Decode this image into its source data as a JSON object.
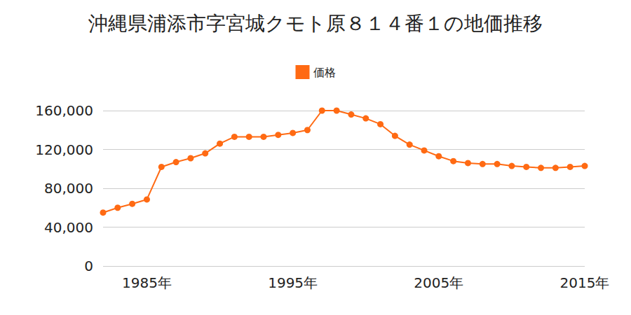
{
  "chart_data": {
    "type": "line",
    "title": "沖縄県浦添市字宮城クモト原８１４番１の地価推移",
    "categories": [
      null,
      null,
      null,
      "1985年",
      null,
      null,
      null,
      null,
      null,
      null,
      null,
      null,
      null,
      "1995年",
      null,
      null,
      null,
      null,
      null,
      null,
      null,
      null,
      null,
      "2005年",
      null,
      null,
      null,
      null,
      null,
      null,
      null,
      null,
      null,
      "2015年"
    ],
    "series": [
      {
        "name": "価格",
        "color": "#ff6a13",
        "marker": "circle",
        "values": [
          55000,
          60000,
          64000,
          68500,
          102000,
          107000,
          111000,
          116000,
          126000,
          133000,
          133000,
          133000,
          135000,
          137000,
          140000,
          160000,
          160000,
          156000,
          152000,
          146000,
          134000,
          125000,
          119000,
          113000,
          108000,
          106000,
          105000,
          105000,
          103000,
          102000,
          101000,
          101000,
          102000,
          103000
        ]
      }
    ],
    "ylim": [
      0,
      160000
    ],
    "yticks": [
      0,
      {
        "value": 40000,
        "label": "40,000"
      },
      {
        "value": 80000,
        "label": "80,000"
      },
      {
        "value": 120000,
        "label": "120,000"
      },
      {
        "value": 160000,
        "label": "160,000"
      }
    ],
    "grid": true,
    "legend": "top"
  }
}
